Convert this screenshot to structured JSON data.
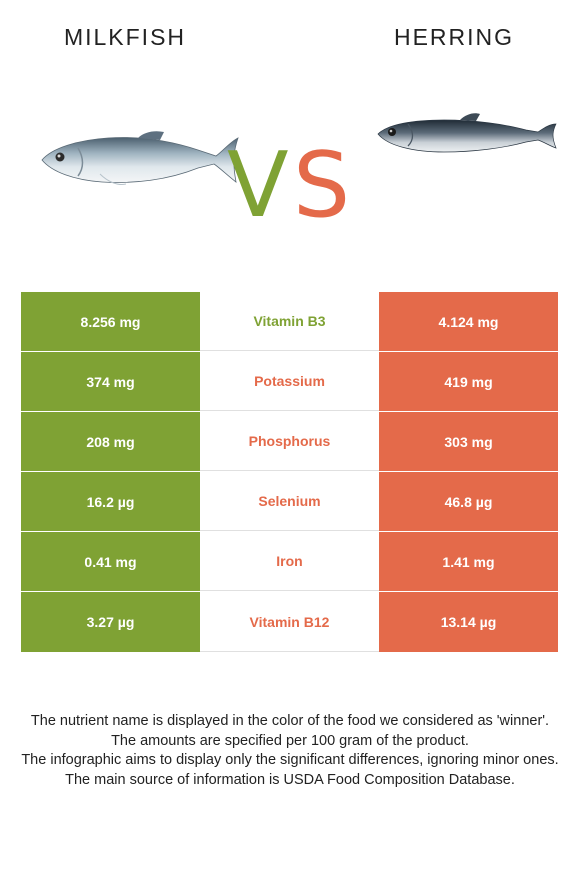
{
  "colors": {
    "milkfish": "#7fa234",
    "herring": "#e46a4a"
  },
  "header": {
    "left_food": "MILKFISH",
    "right_food": "HERRING",
    "vs_v": "V",
    "vs_s": "S",
    "left_image": "milkfish-icon",
    "right_image": "herring-icon"
  },
  "rows": [
    {
      "nutrient": "Vitamin B3",
      "left": "8.256 mg",
      "right": "4.124 mg",
      "winner": "milkfish"
    },
    {
      "nutrient": "Potassium",
      "left": "374 mg",
      "right": "419 mg",
      "winner": "herring"
    },
    {
      "nutrient": "Phosphorus",
      "left": "208 mg",
      "right": "303 mg",
      "winner": "herring"
    },
    {
      "nutrient": "Selenium",
      "left": "16.2 µg",
      "right": "46.8 µg",
      "winner": "herring"
    },
    {
      "nutrient": "Iron",
      "left": "0.41 mg",
      "right": "1.41 mg",
      "winner": "herring"
    },
    {
      "nutrient": "Vitamin B12",
      "left": "3.27 µg",
      "right": "13.14 µg",
      "winner": "herring"
    }
  ],
  "footer": [
    "The nutrient name is displayed in the color of the food we considered as 'winner'.",
    "The amounts are specified per 100 gram of the product.",
    "The infographic aims to display only the significant differences, ignoring minor ones.",
    "The main source of information is USDA Food Composition Database."
  ]
}
